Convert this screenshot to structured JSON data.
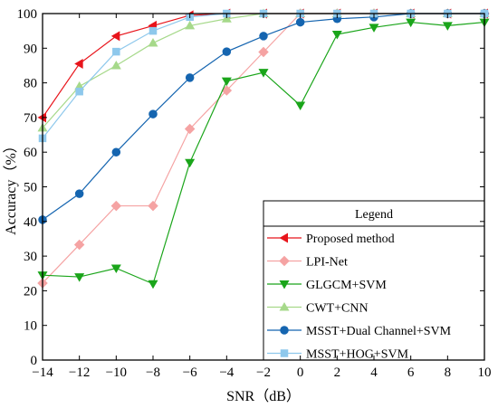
{
  "chart_data": {
    "type": "line",
    "xlabel": "SNR（dB）",
    "ylabel": "Accuracy（%）",
    "x": [
      -14,
      -12,
      -10,
      -8,
      -6,
      -4,
      -2,
      0,
      2,
      4,
      6,
      8,
      10
    ],
    "xlim": [
      -14,
      10
    ],
    "ylim": [
      0,
      100
    ],
    "xticks": [
      "−14",
      "−12",
      "−10",
      "−8",
      "−6",
      "−4",
      "−2",
      "0",
      "2",
      "4",
      "6",
      "8",
      "10"
    ],
    "yticks": [
      "0",
      "10",
      "20",
      "30",
      "40",
      "50",
      "60",
      "70",
      "80",
      "90",
      "100"
    ],
    "grid": false,
    "legend": {
      "title": "Legend",
      "placement": "bottom-right"
    },
    "series": [
      {
        "name": "Proposed method",
        "color": "#e8141b",
        "marker": "triangle-left",
        "values": [
          70.0,
          85.5,
          93.5,
          96.5,
          99.5,
          100,
          100,
          100,
          100,
          100,
          100,
          100,
          100
        ]
      },
      {
        "name": "LPI-Net",
        "color": "#f5a3a3",
        "marker": "diamond",
        "values": [
          22.2,
          33.3,
          44.5,
          44.5,
          66.7,
          77.8,
          88.9,
          100,
          100,
          100,
          100,
          100,
          100
        ]
      },
      {
        "name": "GLGCM+SVM",
        "color": "#1aa51a",
        "marker": "triangle-down",
        "values": [
          24.5,
          24.0,
          26.5,
          22.0,
          57.0,
          80.5,
          83.0,
          73.5,
          94.0,
          96.0,
          97.5,
          96.5,
          97.5
        ]
      },
      {
        "name": "CWT+CNN",
        "color": "#a6d98a",
        "marker": "triangle-up",
        "values": [
          67.0,
          79.0,
          85.0,
          91.5,
          96.5,
          98.5,
          100,
          100,
          100,
          100,
          100,
          100,
          100
        ]
      },
      {
        "name": "MSST+Dual Channel+SVM",
        "color": "#1565b0",
        "marker": "circle",
        "values": [
          40.5,
          48.0,
          60.0,
          71.0,
          81.5,
          89.0,
          93.5,
          97.5,
          98.5,
          99.0,
          100,
          100,
          100
        ]
      },
      {
        "name": "MSST+HOG+SVM",
        "color": "#8ec8ec",
        "marker": "square",
        "values": [
          64.0,
          77.5,
          89.0,
          95.0,
          99.0,
          100,
          100,
          100,
          100,
          100,
          100,
          100,
          100
        ]
      }
    ]
  }
}
